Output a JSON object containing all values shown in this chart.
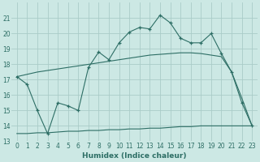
{
  "x": [
    0,
    1,
    2,
    3,
    4,
    5,
    6,
    7,
    8,
    9,
    10,
    11,
    12,
    13,
    14,
    15,
    16,
    17,
    18,
    19,
    20,
    21,
    22,
    23
  ],
  "y_main": [
    17.2,
    16.7,
    15.0,
    13.5,
    15.5,
    15.3,
    15.0,
    17.8,
    18.8,
    18.3,
    19.4,
    20.1,
    20.4,
    20.3,
    21.2,
    20.7,
    19.7,
    19.4,
    19.4,
    20.0,
    18.7,
    17.5,
    15.5,
    14.0
  ],
  "y_upper": [
    17.2,
    17.35,
    17.5,
    17.6,
    17.7,
    17.8,
    17.9,
    18.0,
    18.1,
    18.2,
    18.3,
    18.4,
    18.5,
    18.6,
    18.65,
    18.7,
    18.75,
    18.75,
    18.7,
    18.6,
    18.5,
    17.5,
    15.8,
    14.0
  ],
  "y_lower": [
    13.5,
    13.5,
    13.55,
    13.55,
    13.6,
    13.65,
    13.65,
    13.7,
    13.7,
    13.75,
    13.75,
    13.8,
    13.8,
    13.85,
    13.85,
    13.9,
    13.95,
    13.95,
    14.0,
    14.0,
    14.0,
    14.0,
    14.0,
    14.0
  ],
  "color": "#2d6e65",
  "bg_color": "#cce8e4",
  "grid_color": "#aaccc8",
  "xlabel": "Humidex (Indice chaleur)",
  "ylim": [
    13,
    22
  ],
  "xlim": [
    -0.5,
    23.5
  ],
  "yticks": [
    13,
    14,
    15,
    16,
    17,
    18,
    19,
    20,
    21
  ],
  "xtick_labels": [
    "0",
    "1",
    "2",
    "3",
    "4",
    "5",
    "6",
    "7",
    "8",
    "9",
    "10",
    "11",
    "12",
    "13",
    "14",
    "15",
    "16",
    "17",
    "18",
    "19",
    "20",
    "21",
    "22",
    "23"
  ],
  "label_fontsize": 6.5,
  "tick_fontsize": 5.5
}
